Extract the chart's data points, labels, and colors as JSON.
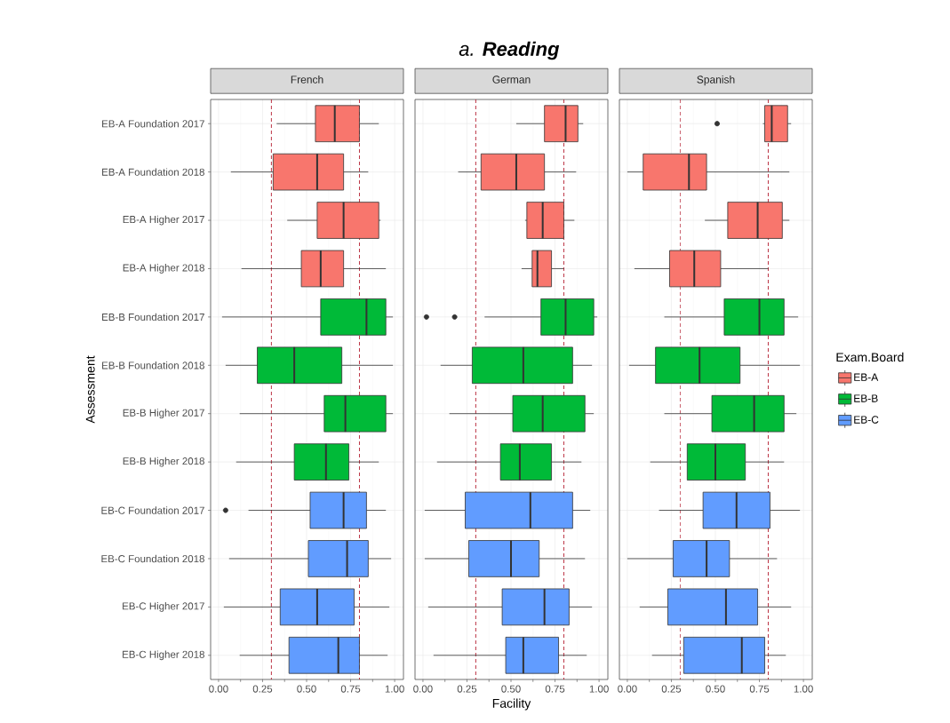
{
  "chart_data": [
    {
      "type": "box",
      "orientation": "horizontal",
      "title": "French",
      "ylabel": "Assessment",
      "categories": [
        "EB-A Foundation 2017",
        "EB-A Foundation 2018",
        "EB-A Higher 2017",
        "EB-A Higher 2018",
        "EB-B Foundation 2017",
        "EB-B Foundation 2018",
        "EB-B Higher 2017",
        "EB-B Higher 2018",
        "EB-C Foundation 2017",
        "EB-C Foundation 2018",
        "EB-C Higher 2017",
        "EB-C Higher 2018"
      ],
      "xlim": [
        -0.045,
        1.05
      ],
      "xticks": [
        {
          "value": 0,
          "label": "0.00"
        },
        {
          "value": 0.25,
          "label": "0.25"
        },
        {
          "value": 0.5,
          "label": "0.50"
        },
        {
          "value": 0.75,
          "label": "0.75"
        },
        {
          "value": 1,
          "label": "1.00"
        }
      ],
      "grid": true,
      "legend": false,
      "ref_lines": [
        {
          "axis": "x",
          "value": 0.3,
          "color": "#b2182b",
          "line_style": "dashed"
        },
        {
          "axis": "x",
          "value": 0.8,
          "color": "#b2182b",
          "line_style": "dashed"
        }
      ],
      "series": [
        {
          "color": "#f8766d",
          "boxes": [
            {
              "low": 0.33,
              "q1": 0.55,
              "median": 0.66,
              "q3": 0.8,
              "high": 0.91
            },
            {
              "low": 0.07,
              "q1": 0.31,
              "median": 0.56,
              "q3": 0.71,
              "high": 0.85
            },
            {
              "low": 0.39,
              "q1": 0.56,
              "median": 0.71,
              "q3": 0.91,
              "high": 0.92
            },
            {
              "low": 0.13,
              "q1": 0.47,
              "median": 0.58,
              "q3": 0.71,
              "high": 0.95
            },
            null,
            null,
            null,
            null,
            null,
            null,
            null,
            null
          ]
        },
        {
          "color": "#00ba38",
          "boxes": [
            null,
            null,
            null,
            null,
            {
              "low": 0.02,
              "q1": 0.58,
              "median": 0.84,
              "q3": 0.95,
              "high": 0.99
            },
            {
              "low": 0.04,
              "q1": 0.22,
              "median": 0.43,
              "q3": 0.7,
              "high": 0.99
            },
            {
              "low": 0.12,
              "q1": 0.6,
              "median": 0.72,
              "q3": 0.95,
              "high": 0.99
            },
            {
              "low": 0.1,
              "q1": 0.43,
              "median": 0.61,
              "q3": 0.74,
              "high": 0.91
            },
            null,
            null,
            null,
            null
          ]
        },
        {
          "color": "#619cff",
          "boxes": [
            null,
            null,
            null,
            null,
            null,
            null,
            null,
            null,
            {
              "low": 0.17,
              "q1": 0.52,
              "median": 0.71,
              "q3": 0.84,
              "high": 0.95,
              "outliers": [
                0.04
              ]
            },
            {
              "low": 0.06,
              "q1": 0.51,
              "median": 0.73,
              "q3": 0.85,
              "high": 0.98
            },
            {
              "low": 0.03,
              "q1": 0.35,
              "median": 0.56,
              "q3": 0.77,
              "high": 0.97
            },
            {
              "low": 0.12,
              "q1": 0.4,
              "median": 0.68,
              "q3": 0.8,
              "high": 0.96
            }
          ]
        }
      ]
    },
    {
      "type": "box",
      "orientation": "horizontal",
      "title": "German",
      "xlabel": "Facility",
      "annotations": [
        "a. **Reading**"
      ],
      "categories": [
        null,
        null,
        null,
        null,
        null,
        null,
        null,
        null,
        null,
        null,
        null,
        null
      ],
      "xlim": [
        -0.045,
        1.05
      ],
      "xticks": [
        {
          "value": 0,
          "label": "0.00"
        },
        {
          "value": 0.25,
          "label": "0.25"
        },
        {
          "value": 0.5,
          "label": "0.50"
        },
        {
          "value": 0.75,
          "label": "0.75"
        },
        {
          "value": 1,
          "label": "1.00"
        }
      ],
      "grid": true,
      "legend": false,
      "tick_labels": "x",
      "ref_lines": [
        {
          "axis": "x",
          "value": 0.3,
          "color": "#b2182b",
          "line_style": "dashed"
        },
        {
          "axis": "x",
          "value": 0.8,
          "color": "#b2182b",
          "line_style": "dashed"
        }
      ],
      "series": [
        {
          "color": "#f8766d",
          "boxes": [
            {
              "low": 0.53,
              "q1": 0.69,
              "median": 0.81,
              "q3": 0.88,
              "high": 0.91
            },
            {
              "low": 0.2,
              "q1": 0.33,
              "median": 0.53,
              "q3": 0.69,
              "high": 0.87
            },
            {
              "low": 0.58,
              "q1": 0.59,
              "median": 0.68,
              "q3": 0.8,
              "high": 0.86
            },
            {
              "low": 0.56,
              "q1": 0.62,
              "median": 0.65,
              "q3": 0.73,
              "high": 0.8
            },
            null,
            null,
            null,
            null,
            null,
            null,
            null,
            null
          ]
        },
        {
          "color": "#00ba38",
          "boxes": [
            null,
            null,
            null,
            null,
            {
              "low": 0.35,
              "q1": 0.67,
              "median": 0.81,
              "q3": 0.97,
              "high": 0.99,
              "outliers": [
                0.02,
                0.18
              ]
            },
            {
              "low": 0.1,
              "q1": 0.28,
              "median": 0.57,
              "q3": 0.85,
              "high": 0.96
            },
            {
              "low": 0.15,
              "q1": 0.51,
              "median": 0.68,
              "q3": 0.92,
              "high": 0.97
            },
            {
              "low": 0.08,
              "q1": 0.44,
              "median": 0.55,
              "q3": 0.73,
              "high": 0.9
            },
            null,
            null,
            null,
            null
          ]
        },
        {
          "color": "#619cff",
          "boxes": [
            null,
            null,
            null,
            null,
            null,
            null,
            null,
            null,
            {
              "low": 0.01,
              "q1": 0.24,
              "median": 0.61,
              "q3": 0.85,
              "high": 0.95
            },
            {
              "low": 0.01,
              "q1": 0.26,
              "median": 0.5,
              "q3": 0.66,
              "high": 0.92
            },
            {
              "low": 0.03,
              "q1": 0.45,
              "median": 0.69,
              "q3": 0.83,
              "high": 0.96
            },
            {
              "low": 0.06,
              "q1": 0.47,
              "median": 0.57,
              "q3": 0.77,
              "high": 0.93
            }
          ]
        }
      ]
    },
    {
      "type": "box",
      "orientation": "horizontal",
      "title": "Spanish",
      "legend_title": "Exam.Board",
      "categories": [
        null,
        null,
        null,
        null,
        null,
        null,
        null,
        null,
        null,
        null,
        null,
        null
      ],
      "xlim": [
        -0.045,
        1.05
      ],
      "xticks": [
        {
          "value": 0,
          "label": "0.00"
        },
        {
          "value": 0.25,
          "label": "0.25"
        },
        {
          "value": 0.5,
          "label": "0.50"
        },
        {
          "value": 0.75,
          "label": "0.75"
        },
        {
          "value": 1,
          "label": "1.00"
        }
      ],
      "grid": true,
      "legend": "right",
      "tick_labels": "x",
      "ref_lines": [
        {
          "axis": "x",
          "value": 0.3,
          "color": "#b2182b",
          "line_style": "dashed"
        },
        {
          "axis": "x",
          "value": 0.8,
          "color": "#b2182b",
          "line_style": "dashed"
        }
      ],
      "series": [
        {
          "name": "EB-A",
          "color": "#f8766d",
          "boxes": [
            {
              "low": 0.77,
              "q1": 0.78,
              "median": 0.82,
              "q3": 0.91,
              "high": 0.93,
              "outliers": [
                0.51
              ]
            },
            {
              "low": 0.0,
              "q1": 0.09,
              "median": 0.35,
              "q3": 0.45,
              "high": 0.92
            },
            {
              "low": 0.44,
              "q1": 0.57,
              "median": 0.74,
              "q3": 0.88,
              "high": 0.92
            },
            {
              "low": 0.04,
              "q1": 0.24,
              "median": 0.38,
              "q3": 0.53,
              "high": 0.8
            },
            null,
            null,
            null,
            null,
            null,
            null,
            null,
            null
          ]
        },
        {
          "name": "EB-B",
          "color": "#00ba38",
          "boxes": [
            null,
            null,
            null,
            null,
            {
              "low": 0.21,
              "q1": 0.55,
              "median": 0.75,
              "q3": 0.89,
              "high": 0.97
            },
            {
              "low": 0.01,
              "q1": 0.16,
              "median": 0.41,
              "q3": 0.64,
              "high": 0.98
            },
            {
              "low": 0.21,
              "q1": 0.48,
              "median": 0.72,
              "q3": 0.89,
              "high": 0.96
            },
            {
              "low": 0.13,
              "q1": 0.34,
              "median": 0.5,
              "q3": 0.67,
              "high": 0.89
            },
            null,
            null,
            null,
            null
          ]
        },
        {
          "name": "EB-C",
          "color": "#619cff",
          "boxes": [
            null,
            null,
            null,
            null,
            null,
            null,
            null,
            null,
            {
              "low": 0.18,
              "q1": 0.43,
              "median": 0.62,
              "q3": 0.81,
              "high": 0.98
            },
            {
              "low": 0.0,
              "q1": 0.26,
              "median": 0.45,
              "q3": 0.58,
              "high": 0.85
            },
            {
              "low": 0.07,
              "q1": 0.23,
              "median": 0.56,
              "q3": 0.74,
              "high": 0.93
            },
            {
              "low": 0.14,
              "q1": 0.32,
              "median": 0.65,
              "q3": 0.78,
              "high": 0.9
            }
          ]
        }
      ]
    }
  ]
}
